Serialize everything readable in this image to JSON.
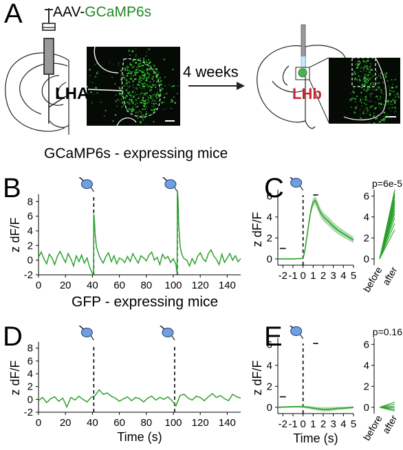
{
  "panels": {
    "A": "A",
    "B": "B",
    "C": "C",
    "D": "D",
    "E": "E"
  },
  "panel_a": {
    "virus_prefix": "AAV-",
    "virus_name": "GCaMP6s",
    "lha_label": "LHA",
    "arrow_label": "4 weeks",
    "lhb_label": "LHb"
  },
  "section_titles": {
    "gcamp": "GCaMP6s - expressing mice",
    "gfp": "GFP - expressing mice"
  },
  "colors": {
    "trace": "#2ca02c",
    "sem_fill": "#8fd08f",
    "virus_text": "#1f8a1f",
    "lhb_text": "#c0282d",
    "micrograph_bg": "#050a05",
    "micrograph_dots": "#39d039",
    "puff_icon": "#6f9fe0"
  },
  "chart_data": [
    {
      "id": "B",
      "type": "line",
      "xlabel": "",
      "ylabel": "z dF/F",
      "xlim": [
        0,
        150
      ],
      "ylim": [
        -2,
        10
      ],
      "xticks": [
        "0",
        "20",
        "40",
        "60",
        "80",
        "100",
        "120",
        "140"
      ],
      "yticks": [
        "-2",
        "0",
        "2",
        "4",
        "6",
        "8"
      ],
      "stimulus_times": [
        41,
        103
      ],
      "series": [
        {
          "x": [
            0,
            2,
            4,
            6,
            8,
            10,
            12,
            14,
            16,
            18,
            20,
            22,
            24,
            26,
            28,
            30,
            32,
            34,
            36,
            38,
            40,
            40.8,
            41,
            41.5,
            42,
            43,
            44,
            45,
            46,
            48,
            50,
            52,
            54,
            56,
            58,
            60,
            62,
            64,
            66,
            68,
            70,
            72,
            74,
            76,
            78,
            80,
            82,
            84,
            86,
            88,
            90,
            92,
            94,
            96,
            98,
            100,
            102,
            102.8,
            103,
            103.5,
            104,
            105,
            106,
            107,
            108,
            110,
            112,
            114,
            116,
            118,
            120,
            122,
            124,
            126,
            128,
            130,
            132,
            134,
            136,
            138,
            140,
            142,
            144,
            146,
            148,
            150
          ],
          "values": [
            0.4,
            1.1,
            0.2,
            -0.5,
            0.8,
            0.3,
            -0.6,
            0.5,
            1.2,
            0.4,
            -0.3,
            0.9,
            0.2,
            -0.8,
            0.6,
            -0.2,
            0.7,
            -0.4,
            0.3,
            -1.0,
            -1.8,
            -2.0,
            6.3,
            5.4,
            3.5,
            1.8,
            1.2,
            0.6,
            0.2,
            -0.4,
            0.5,
            1.0,
            -0.2,
            0.6,
            -0.5,
            0.3,
            0.1,
            -0.3,
            0.5,
            -0.2,
            0.9,
            0.2,
            -0.4,
            0.6,
            0.3,
            -0.1,
            0.7,
            1.1,
            0.0,
            0.4,
            -0.6,
            0.8,
            0.2,
            0.5,
            -0.3,
            0.2,
            -0.6,
            -1.9,
            9.5,
            8.3,
            5.0,
            2.0,
            1.0,
            0.5,
            0.2,
            0.0,
            -0.8,
            0.2,
            -0.5,
            0.5,
            1.0,
            0.2,
            -0.2,
            0.9,
            1.4,
            0.6,
            0.1,
            -0.6,
            0.8,
            -0.3,
            0.3,
            0.9,
            0.0,
            0.6,
            -0.2,
            0.2
          ]
        }
      ]
    },
    {
      "id": "C",
      "type": "line",
      "xlabel": "",
      "ylabel": "z dF/F",
      "xlim": [
        -2.5,
        5
      ],
      "ylim": [
        -0.6,
        7
      ],
      "xticks": [
        "-2",
        "-1",
        "0",
        "1",
        "2",
        "3",
        "4",
        "5"
      ],
      "yticks": [
        "0",
        "2",
        "4",
        "6"
      ],
      "stimulus_times": [
        0
      ],
      "series": [
        {
          "x": [
            -2.5,
            -2,
            -1,
            -0.5,
            0,
            0.2,
            0.4,
            0.6,
            0.8,
            1.0,
            1.2,
            1.4,
            1.6,
            1.8,
            2.0,
            2.2,
            2.5,
            3.0,
            3.5,
            4.0,
            4.5,
            5.0
          ],
          "values": [
            0.0,
            0.0,
            0.0,
            0.02,
            0.05,
            0.9,
            2.2,
            3.6,
            4.7,
            5.4,
            5.6,
            5.2,
            4.7,
            4.3,
            4.05,
            3.85,
            3.6,
            3.1,
            2.7,
            2.4,
            2.1,
            1.8
          ],
          "sem": [
            0.05,
            0.05,
            0.05,
            0.05,
            0.06,
            0.15,
            0.25,
            0.3,
            0.35,
            0.38,
            0.4,
            0.42,
            0.42,
            0.42,
            0.42,
            0.42,
            0.42,
            0.4,
            0.38,
            0.35,
            0.32,
            0.3
          ]
        }
      ]
    },
    {
      "id": "C-paired",
      "type": "line",
      "pvalue": "p=6e-5",
      "categories": [
        "before",
        "after"
      ],
      "ylim": [
        -0.6,
        7
      ],
      "yticks": [
        "0",
        "2",
        "4",
        "6"
      ],
      "pairs": [
        [
          0,
          6.6
        ],
        [
          0,
          6.3
        ],
        [
          0,
          6.1
        ],
        [
          0,
          5.9
        ],
        [
          0,
          5.6
        ],
        [
          0,
          5.4
        ],
        [
          0,
          5.2
        ],
        [
          0,
          4.9
        ],
        [
          0,
          4.6
        ],
        [
          0,
          4.3
        ],
        [
          0,
          3.9
        ],
        [
          0,
          3.4
        ],
        [
          0,
          2.8
        ]
      ]
    },
    {
      "id": "D",
      "type": "line",
      "xlabel": "Time (s)",
      "ylabel": "z dF/F",
      "xlim": [
        0,
        150
      ],
      "ylim": [
        -2,
        10
      ],
      "xticks": [
        "0",
        "20",
        "40",
        "60",
        "80",
        "100",
        "120",
        "140"
      ],
      "yticks": [
        "-2",
        "0",
        "2",
        "4",
        "6",
        "8"
      ],
      "stimulus_times": [
        41,
        101
      ],
      "series": [
        {
          "x": [
            0,
            3,
            6,
            9,
            12,
            15,
            18,
            21,
            24,
            27,
            30,
            33,
            36,
            39,
            42,
            45,
            48,
            51,
            54,
            57,
            60,
            63,
            66,
            69,
            72,
            75,
            78,
            81,
            84,
            87,
            90,
            93,
            96,
            99,
            102,
            105,
            108,
            111,
            114,
            117,
            120,
            123,
            126,
            129,
            132,
            135,
            138,
            141,
            144,
            147,
            150
          ],
          "values": [
            -0.2,
            0.3,
            -0.5,
            0.1,
            0.4,
            -0.3,
            0.2,
            -1.2,
            0.3,
            -0.1,
            0.5,
            0.0,
            -0.4,
            0.3,
            0.6,
            1.5,
            0.8,
            1.0,
            0.5,
            0.2,
            -0.3,
            0.1,
            0.4,
            -0.2,
            0.3,
            0.1,
            -0.4,
            0.2,
            0.5,
            -0.1,
            0.3,
            0.0,
            0.4,
            -0.2,
            -1.0,
            0.6,
            0.8,
            0.2,
            -0.1,
            0.5,
            0.3,
            -0.2,
            0.4,
            0.9,
            0.3,
            0.6,
            0.1,
            -0.2,
            0.8,
            0.4,
            0.2
          ]
        }
      ]
    },
    {
      "id": "E",
      "type": "line",
      "xlabel": "Time (s)",
      "ylabel": "z dF/F",
      "xlim": [
        -2.5,
        5
      ],
      "ylim": [
        -0.6,
        7
      ],
      "xticks": [
        "-2",
        "-1",
        "0",
        "1",
        "2",
        "3",
        "4",
        "5"
      ],
      "yticks": [
        "0",
        "2",
        "4",
        "6"
      ],
      "stimulus_times": [
        0
      ],
      "series": [
        {
          "x": [
            -2.5,
            -2,
            -1,
            -0.5,
            0,
            0.5,
            1,
            1.5,
            2,
            2.5,
            3,
            3.5,
            4,
            4.5,
            5
          ],
          "values": [
            0.0,
            0.02,
            0.05,
            0.06,
            0.05,
            0.0,
            -0.08,
            -0.15,
            -0.2,
            -0.2,
            -0.15,
            -0.1,
            -0.08,
            -0.05,
            0.0
          ],
          "sem": [
            0.08,
            0.08,
            0.08,
            0.08,
            0.1,
            0.12,
            0.15,
            0.18,
            0.2,
            0.2,
            0.18,
            0.16,
            0.14,
            0.12,
            0.1
          ]
        }
      ]
    },
    {
      "id": "E-paired",
      "type": "line",
      "pvalue": "p=0.16",
      "categories": [
        "before",
        "after"
      ],
      "ylim": [
        -0.6,
        7
      ],
      "yticks": [
        "0",
        "2",
        "4",
        "6"
      ],
      "pairs": [
        [
          0,
          0.5
        ],
        [
          0,
          0.3
        ],
        [
          0,
          0.1
        ],
        [
          0,
          -0.05
        ],
        [
          0,
          -0.2
        ],
        [
          0,
          -0.35
        ]
      ]
    }
  ]
}
